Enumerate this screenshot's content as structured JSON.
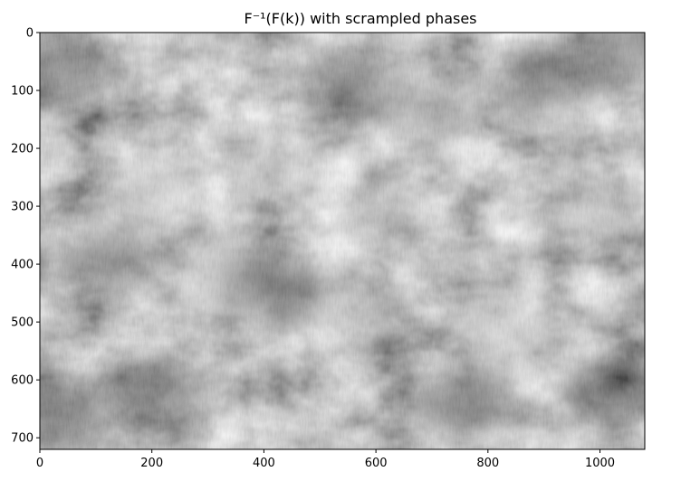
{
  "chart_data": {
    "type": "heatmap",
    "title": "F⁻¹(F(k)) with scrampled phases",
    "xlabel": "",
    "ylabel": "",
    "colormap": "gray",
    "xlim": [
      0,
      1080
    ],
    "ylim": [
      720,
      0
    ],
    "x_ticks": [
      0,
      200,
      400,
      600,
      800,
      1000
    ],
    "y_ticks": [
      0,
      100,
      200,
      300,
      400,
      500,
      600,
      700
    ],
    "grid": false,
    "legend": "none",
    "description_visible": "grayscale noise texture image, mostly mid-gray with brighter blotches near the middle-left and darker patches near the corners",
    "bright_regions": [
      {
        "x": 200,
        "y": 270,
        "level": 0.88
      },
      {
        "x": 430,
        "y": 240,
        "level": 0.92
      },
      {
        "x": 620,
        "y": 310,
        "level": 0.78
      },
      {
        "x": 830,
        "y": 510,
        "level": 0.82
      },
      {
        "x": 700,
        "y": 140,
        "level": 0.74
      },
      {
        "x": 980,
        "y": 300,
        "level": 0.76
      },
      {
        "x": 330,
        "y": 420,
        "level": 0.7
      },
      {
        "x": 560,
        "y": 480,
        "level": 0.72
      }
    ],
    "dark_regions": [
      {
        "x": 40,
        "y": 60,
        "level": 0.3
      },
      {
        "x": 30,
        "y": 660,
        "level": 0.22
      },
      {
        "x": 1020,
        "y": 620,
        "level": 0.2
      },
      {
        "x": 1050,
        "y": 30,
        "level": 0.32
      },
      {
        "x": 200,
        "y": 620,
        "level": 0.33
      },
      {
        "x": 420,
        "y": 440,
        "level": 0.35
      },
      {
        "x": 760,
        "y": 640,
        "level": 0.3
      },
      {
        "x": 900,
        "y": 90,
        "level": 0.35
      },
      {
        "x": 560,
        "y": 90,
        "level": 0.38
      },
      {
        "x": 120,
        "y": 390,
        "level": 0.38
      }
    ]
  }
}
